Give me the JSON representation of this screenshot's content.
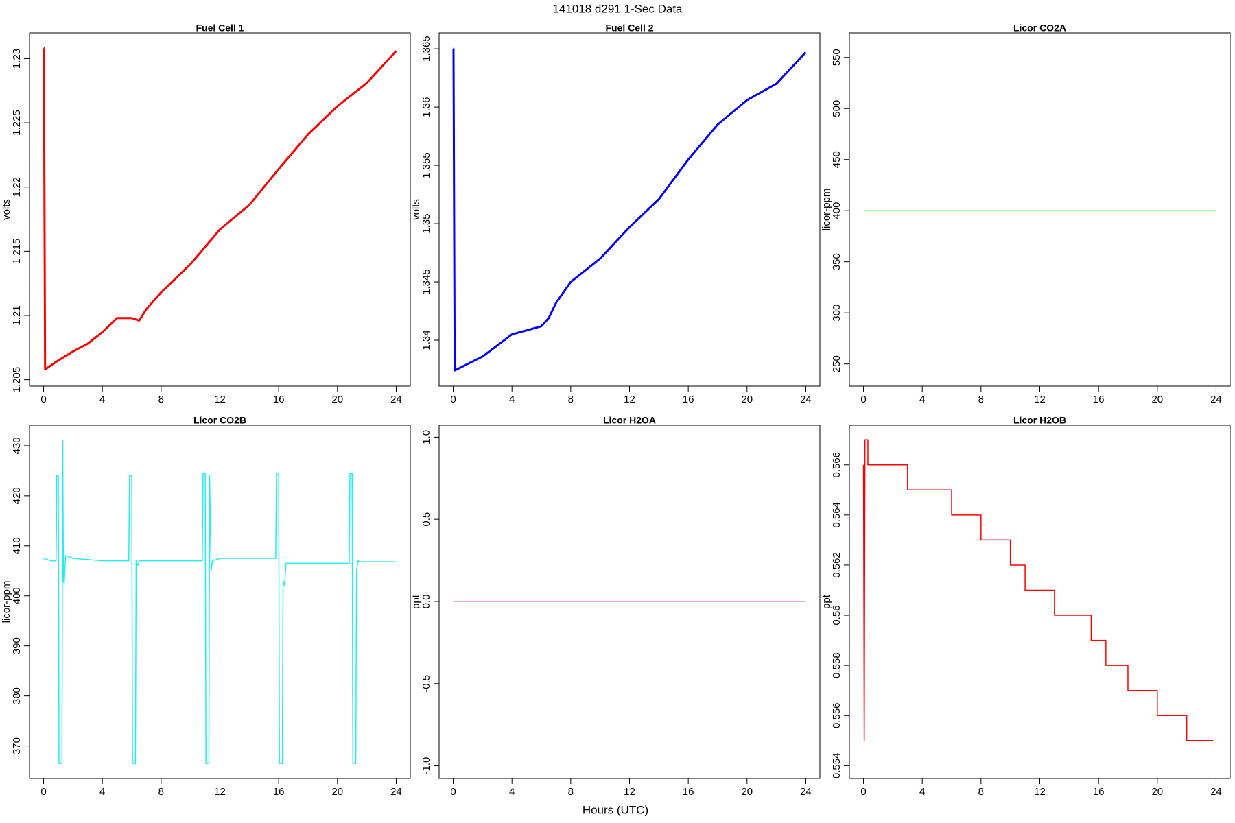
{
  "title": "141018   d291   1-Sec Data",
  "xlabel": "Hours (UTC)",
  "chart_data": [
    {
      "type": "line",
      "title": "Fuel Cell 1",
      "ylabel": "volts",
      "color": "#ff0000",
      "x": [
        0,
        0.02,
        0.1,
        1,
        2,
        3,
        4,
        5,
        6,
        6.5,
        7,
        8,
        10,
        12,
        14,
        16,
        18,
        20,
        22,
        24
      ],
      "values": [
        1.2308,
        1.2308,
        1.2058,
        1.2065,
        1.2072,
        1.2078,
        1.2087,
        1.2098,
        1.2098,
        1.2096,
        1.2105,
        1.2118,
        1.214,
        1.2167,
        1.2186,
        1.2214,
        1.2241,
        1.2263,
        1.2281,
        1.2306
      ],
      "xlim": [
        -0.96,
        24.96
      ],
      "xticks": [
        0,
        4,
        8,
        12,
        16,
        20,
        24
      ],
      "ylim": [
        1.2045,
        1.232
      ],
      "yticks": [
        1.205,
        1.21,
        1.215,
        1.22,
        1.225,
        1.23
      ]
    },
    {
      "type": "line",
      "title": "Fuel Cell 2",
      "ylabel": "volts",
      "color": "#0000ff",
      "x": [
        0,
        0.02,
        0.1,
        2,
        4,
        6,
        6.5,
        7,
        8,
        10,
        12,
        14,
        16,
        18,
        20,
        22,
        24
      ],
      "values": [
        1.365,
        1.365,
        1.3374,
        1.3386,
        1.3405,
        1.3412,
        1.3419,
        1.3432,
        1.345,
        1.347,
        1.3497,
        1.3521,
        1.3555,
        1.3585,
        1.3606,
        1.362,
        1.3647
      ],
      "xlim": [
        -0.96,
        24.96
      ],
      "xticks": [
        0,
        4,
        8,
        12,
        16,
        20,
        24
      ],
      "ylim": [
        1.33606,
        1.36636
      ],
      "yticks": [
        1.34,
        1.345,
        1.35,
        1.355,
        1.36,
        1.365
      ]
    },
    {
      "type": "line",
      "title": "Licor CO2A",
      "ylabel": "licor-ppm",
      "color": "#66ee66",
      "x": [
        0,
        24
      ],
      "values": [
        400,
        400
      ],
      "xlim": [
        -0.96,
        24.96
      ],
      "xticks": [
        0,
        4,
        8,
        12,
        16,
        20,
        24
      ],
      "ylim": [
        228.3,
        574
      ],
      "yticks": [
        250,
        300,
        350,
        400,
        450,
        500,
        550
      ]
    },
    {
      "type": "line",
      "title": "Licor CO2B",
      "ylabel": "licor-ppm",
      "color": "#22eeee",
      "x": [
        0,
        0.5,
        0.85,
        0.9,
        1.0,
        1.05,
        1.25,
        1.3,
        1.35,
        1.4,
        1.5,
        1.6,
        2,
        4,
        5.8,
        5.85,
        6.0,
        6.05,
        6.25,
        6.3,
        6.4,
        6.5,
        7,
        9,
        10.8,
        10.85,
        11.0,
        11.05,
        11.25,
        11.3,
        11.4,
        11.5,
        12,
        14,
        15.8,
        15.85,
        16.0,
        16.05,
        16.25,
        16.3,
        16.4,
        16.5,
        17,
        19,
        20.8,
        20.85,
        21.0,
        21.05,
        21.25,
        21.3,
        21.4,
        21.5,
        22,
        24
      ],
      "values": [
        407.5,
        407,
        407,
        424,
        424,
        366.5,
        366.5,
        431,
        403,
        402.5,
        408,
        408,
        407.5,
        407,
        407,
        424,
        424,
        366.5,
        366.5,
        407,
        406,
        407,
        407,
        407,
        407,
        424.5,
        424.5,
        366.5,
        366.5,
        424,
        405,
        407,
        407.5,
        407.5,
        407.5,
        424.5,
        424.5,
        366.5,
        366.5,
        403,
        402,
        406.5,
        406.5,
        406.5,
        406.5,
        424.5,
        424.5,
        366.5,
        366.5,
        405,
        407,
        406.8,
        406.8,
        406.8
      ],
      "xlim": [
        -0.96,
        24.96
      ],
      "xticks": [
        0,
        4,
        8,
        12,
        16,
        20,
        24
      ],
      "ylim": [
        363.5,
        434.1
      ],
      "yticks": [
        370,
        380,
        390,
        400,
        410,
        420,
        430
      ]
    },
    {
      "type": "line",
      "title": "Licor H2OA",
      "ylabel": "ppt",
      "color": "#dd88dd",
      "x": [
        0,
        24
      ],
      "values": [
        0,
        0
      ],
      "xlim": [
        -0.96,
        24.96
      ],
      "xticks": [
        0,
        4,
        8,
        12,
        16,
        20,
        24
      ],
      "ylim": [
        -1.077,
        1.0725
      ],
      "yticks": [
        {
          "value": -1,
          "label": "-1.0"
        },
        -0.5,
        {
          "value": 0,
          "label": "0.0"
        },
        0.5,
        {
          "value": 1,
          "label": "1.0"
        }
      ]
    },
    {
      "type": "line",
      "title": "Licor H2OB",
      "ylabel": "ppt",
      "color": "#ff0000",
      "x": [
        0,
        0.05,
        0.1,
        0.3,
        0.3,
        3,
        3,
        6,
        6,
        8,
        8,
        10,
        10,
        11,
        11,
        13,
        13,
        15.5,
        15.5,
        16.5,
        16.5,
        18,
        18,
        20,
        20,
        22,
        22,
        23.8
      ],
      "values": [
        0.566,
        0.555,
        0.567,
        0.567,
        0.566,
        0.566,
        0.565,
        0.565,
        0.564,
        0.564,
        0.563,
        0.563,
        0.562,
        0.562,
        0.561,
        0.561,
        0.56,
        0.56,
        0.559,
        0.559,
        0.558,
        0.558,
        0.557,
        0.557,
        0.556,
        0.556,
        0.555,
        0.555
      ],
      "xlim": [
        -0.96,
        24.96
      ],
      "xticks": [
        0,
        4,
        8,
        12,
        16,
        20,
        24
      ],
      "ylim": [
        0.55349,
        0.56758
      ],
      "yticks": [
        0.554,
        0.556,
        0.558,
        0.56,
        0.562,
        0.564,
        0.566
      ]
    }
  ]
}
